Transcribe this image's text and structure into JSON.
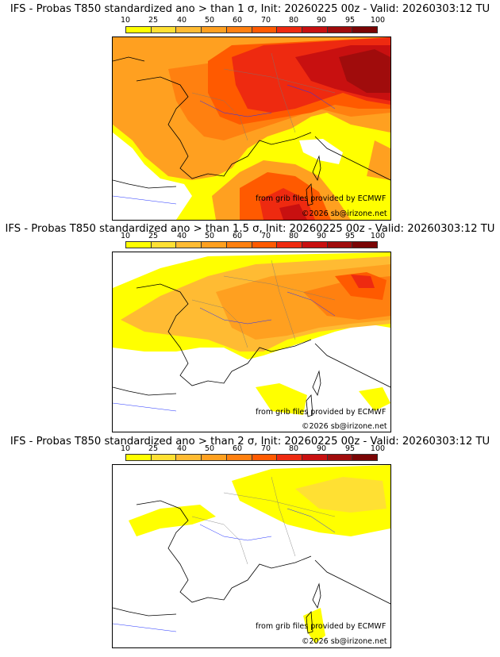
{
  "colorbar": {
    "ticks": [
      "10",
      "25",
      "40",
      "50",
      "60",
      "70",
      "80",
      "90",
      "95",
      "100"
    ],
    "colors": [
      "#ffff00",
      "#ffe033",
      "#ffbb33",
      "#ffa020",
      "#ff8010",
      "#ff5a00",
      "#ee2a10",
      "#c81010",
      "#a00c0c",
      "#7a0505"
    ]
  },
  "panels": [
    {
      "title": "IFS - Probas T850  standardized ano > than 1 σ, Init: 20260225 00z - Valid: 20260303:12 TU",
      "credit_grib": "from grib files provided by ECMWF",
      "credit_site": "©2026 sb@irizone.net"
    },
    {
      "title": "IFS - Probas T850  standardized ano > than 1.5 σ, Init: 20260225 00z - Valid: 20260303:12 TU",
      "credit_grib": "from grib files provided by ECMWF",
      "credit_site": "©2026 sb@irizone.net"
    },
    {
      "title": "IFS - Probas T850  standardized ano > than 2 σ, Init: 20260225 00z - Valid: 20260303:12 TU",
      "credit_grib": "from grib files provided by ECMWF",
      "credit_site": "©2026 sb@irizone.net"
    }
  ]
}
